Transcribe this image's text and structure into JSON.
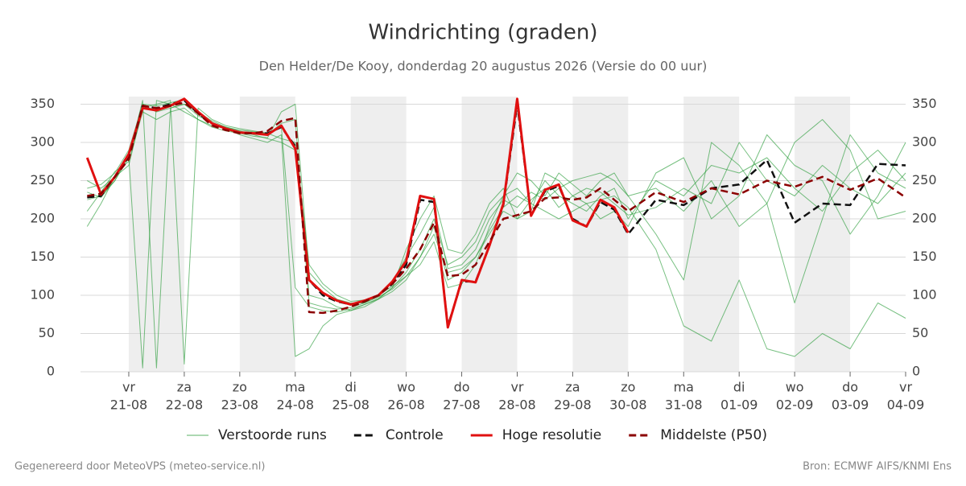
{
  "chart_data": {
    "type": "line",
    "title": "Windrichting (graden)",
    "subtitle": "Den Helder/De Kooy, donderdag 20 augustus 2026 (Versie do 00 uur)",
    "footer_left": "Gegenereerd door MeteoVPS (meteo-service.nl)",
    "footer_right": "Bron: ECMWF AIFS/KNMI Ens",
    "x": [
      0.25,
      0.5,
      0.75,
      1,
      1.25,
      1.5,
      1.75,
      2,
      2.25,
      2.5,
      2.75,
      3,
      3.25,
      3.5,
      3.75,
      4,
      4.25,
      4.5,
      4.75,
      5,
      5.25,
      5.5,
      5.75,
      6,
      6.25,
      6.5,
      6.75,
      7,
      7.25,
      7.5,
      7.75,
      8,
      8.25,
      8.5,
      8.75,
      9,
      9.25,
      9.5,
      9.75,
      10,
      10.5,
      11,
      11.5,
      12,
      12.5,
      13,
      13.5,
      14,
      14.5,
      15
    ],
    "xlim": [
      0.13,
      15
    ],
    "xticks": [
      {
        "value": 1,
        "label": "21-08"
      },
      {
        "value": 2,
        "label": "22-08"
      },
      {
        "value": 3,
        "label": "23-08"
      },
      {
        "value": 4,
        "label": "24-08"
      },
      {
        "value": 5,
        "label": "25-08"
      },
      {
        "value": 6,
        "label": "26-08"
      },
      {
        "value": 7,
        "label": "27-08"
      },
      {
        "value": 8,
        "label": "28-08"
      },
      {
        "value": 9,
        "label": "29-08"
      },
      {
        "value": 10,
        "label": "30-08"
      },
      {
        "value": 11,
        "label": "31-08"
      },
      {
        "value": 12,
        "label": "01-09"
      },
      {
        "value": 13,
        "label": "02-09"
      },
      {
        "value": 14,
        "label": "03-09"
      },
      {
        "value": 15,
        "label": "04-09"
      }
    ],
    "xtick_weekdays": [
      "vr",
      "za",
      "zo",
      "ma",
      "di",
      "wo",
      "do",
      "vr",
      "za",
      "zo",
      "ma",
      "di",
      "wo",
      "do",
      "vr"
    ],
    "bands": [
      [
        1,
        2
      ],
      [
        3,
        4
      ],
      [
        5,
        6
      ],
      [
        7,
        8
      ],
      [
        9,
        10
      ],
      [
        11,
        12
      ],
      [
        13,
        14
      ]
    ],
    "band_color": "#eeeeee",
    "ylim": [
      0,
      360
    ],
    "yticks": [
      0,
      50,
      100,
      150,
      200,
      250,
      300,
      350
    ],
    "grid": true,
    "right_axis": true,
    "ensemble": {
      "name": "Verstoorde runs",
      "color": "#2e9e3e",
      "members": [
        [
          240,
          245,
          260,
          290,
          350,
          340,
          345,
          350,
          335,
          325,
          320,
          315,
          310,
          305,
          300,
          290,
          100,
          95,
          85,
          80,
          85,
          95,
          110,
          130,
          160,
          200,
          140,
          150,
          170,
          210,
          230,
          240,
          220,
          250,
          230,
          220,
          210,
          230,
          240,
          200,
          250,
          230,
          270,
          260,
          280,
          240,
          210,
          260,
          290,
          250
        ],
        [
          225,
          230,
          250,
          280,
          5,
          355,
          350,
          340,
          330,
          322,
          318,
          310,
          305,
          300,
          310,
          20,
          30,
          60,
          75,
          80,
          88,
          95,
          105,
          120,
          150,
          190,
          120,
          130,
          150,
          180,
          210,
          200,
          225,
          240,
          215,
          230,
          240,
          235,
          220,
          205,
          215,
          240,
          220,
          300,
          250,
          230,
          270,
          240,
          220,
          260
        ],
        [
          210,
          235,
          262,
          275,
          340,
          330,
          340,
          345,
          330,
          320,
          315,
          312,
          308,
          306,
          340,
          350,
          130,
          110,
          95,
          90,
          90,
          100,
          112,
          125,
          140,
          170,
          110,
          115,
          140,
          190,
          230,
          260,
          250,
          230,
          260,
          245,
          230,
          250,
          260,
          230,
          180,
          120,
          300,
          270,
          220,
          90,
          200,
          310,
          260,
          240
        ],
        [
          250,
          240,
          255,
          282,
          355,
          5,
          345,
          350,
          340,
          328,
          320,
          316,
          314,
          312,
          320,
          110,
          85,
          80,
          78,
          82,
          88,
          96,
          110,
          160,
          200,
          230,
          160,
          155,
          180,
          220,
          240,
          200,
          210,
          260,
          250,
          230,
          220,
          200,
          210,
          190,
          260,
          280,
          200,
          230,
          310,
          270,
          250,
          180,
          230,
          300
        ],
        [
          190,
          220,
          255,
          270,
          345,
          350,
          355,
          10,
          345,
          330,
          322,
          318,
          315,
          312,
          305,
          300,
          140,
          115,
          100,
          92,
          94,
          100,
          118,
          150,
          180,
          215,
          135,
          140,
          160,
          200,
          225,
          215,
          235,
          225,
          240,
          250,
          255,
          260,
          250,
          230,
          240,
          210,
          250,
          190,
          220,
          300,
          330,
          290,
          200,
          210
        ],
        [
          235,
          228,
          250,
          285,
          350,
          348,
          352,
          356,
          340,
          326,
          318,
          312,
          312,
          310,
          325,
          330,
          90,
          85,
          82,
          84,
          90,
          98,
          108,
          125,
          150,
          180,
          130,
          135,
          150,
          185,
          215,
          230,
          220,
          210,
          200,
          210,
          220,
          225,
          230,
          215,
          160,
          60,
          40,
          120,
          30,
          20,
          50,
          30,
          90,
          70
        ]
      ]
    },
    "series": [
      {
        "name": "Controle",
        "color": "#111111",
        "dash": true,
        "values": [
          228,
          230,
          255,
          282,
          348,
          345,
          350,
          355,
          338,
          325,
          318,
          313,
          312,
          312,
          320,
          295,
          120,
          100,
          92,
          88,
          92,
          100,
          115,
          140,
          225,
          222,
          60,
          118,
          118,
          165,
          218,
          350,
          205,
          236,
          243,
          200,
          190,
          222,
          212,
          180,
          225,
          218,
          240,
          245,
          277,
          195,
          220,
          218,
          272,
          270
        ]
      },
      {
        "name": "Hoge resolutie",
        "color": "#e01010",
        "dash": false,
        "values": [
          280,
          232,
          255,
          285,
          345,
          342,
          348,
          357,
          340,
          325,
          318,
          313,
          312,
          310,
          322,
          292,
          120,
          103,
          93,
          88,
          93,
          100,
          118,
          145,
          230,
          226,
          58,
          120,
          117,
          165,
          220,
          357,
          204,
          238,
          245,
          198,
          190,
          225,
          215,
          182,
          null,
          null,
          null,
          null,
          null,
          null,
          null,
          null,
          null,
          null
        ]
      },
      {
        "name": "Middelste (P50)",
        "color": "#8b0000",
        "dash": true,
        "values": [
          230,
          233,
          255,
          278,
          348,
          345,
          348,
          352,
          338,
          322,
          316,
          312,
          312,
          315,
          328,
          332,
          78,
          77,
          80,
          85,
          92,
          100,
          115,
          135,
          160,
          195,
          125,
          127,
          140,
          170,
          200,
          205,
          210,
          227,
          228,
          225,
          228,
          240,
          225,
          210,
          235,
          222,
          240,
          232,
          250,
          242,
          255,
          238,
          253,
          228
        ]
      }
    ]
  }
}
